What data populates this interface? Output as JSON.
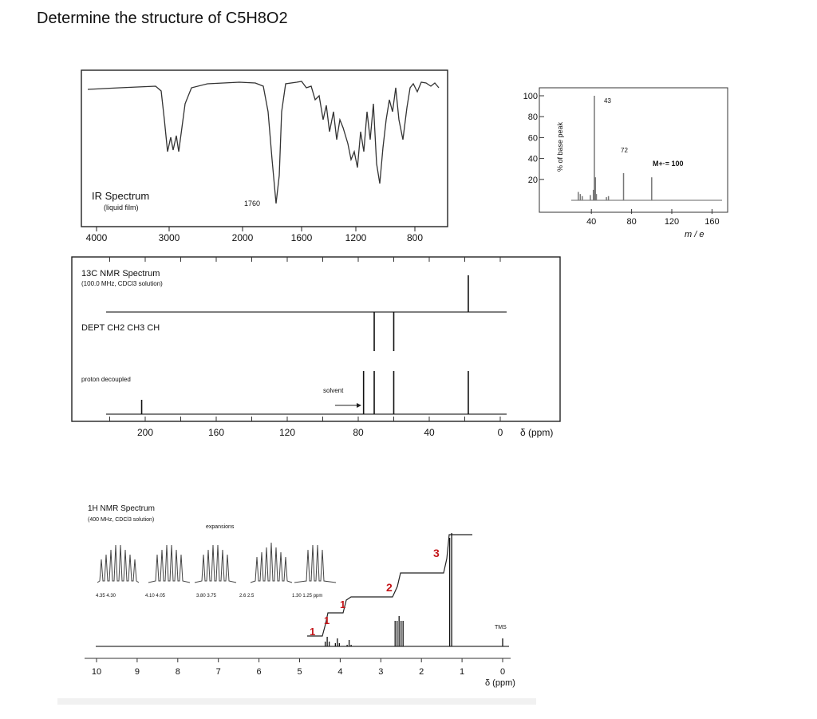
{
  "question": "Determine the structure of C5H8O2",
  "ir": {
    "title": "IR Spectrum",
    "subtitle": "(liquid film)",
    "peak_label": "1760",
    "x_ticks": [
      "4000",
      "3000",
      "2000",
      "1600",
      "1200",
      "800"
    ]
  },
  "ms": {
    "ylabel": "% of base peak",
    "xlabel": "m / e",
    "y_ticks": [
      "100",
      "80",
      "60",
      "40",
      "20"
    ],
    "x_ticks": [
      "40",
      "80",
      "120",
      "160"
    ],
    "peak_labels": [
      "43",
      "72"
    ],
    "molecular_ion": "M+·= 100"
  },
  "c13": {
    "title": "13C NMR Spectrum",
    "subtitle": "(100.0 MHz, CDCl3 solution)",
    "dept": "DEPT  CH2  CH3  CH",
    "decoupled": "proton decoupled",
    "solvent": "solvent",
    "x_ticks": [
      "200",
      "160",
      "120",
      "80",
      "40",
      "0"
    ],
    "xlabel": "δ (ppm)"
  },
  "h1": {
    "title": "1H NMR Spectrum",
    "subtitle": "(400 MHz, CDCl3 solution)",
    "expansions": "expansions",
    "exp_ticks": [
      "4.35  4.30",
      "4.10  4.05",
      "3.80  3.75",
      "2.6  2.5",
      "1.30  1.25  ppm"
    ],
    "integrals": [
      "1",
      "1",
      "1",
      "2",
      "3"
    ],
    "tms": "TMS",
    "x_ticks": [
      "10",
      "9",
      "8",
      "7",
      "6",
      "5",
      "4",
      "3",
      "2",
      "1",
      "0"
    ],
    "xlabel": "δ (ppm)"
  },
  "chart_data": [
    {
      "type": "line",
      "title": "IR Spectrum",
      "xlabel": "",
      "ylabel": "",
      "x_ticks": [
        4000,
        3000,
        2000,
        1600,
        1200,
        800
      ],
      "annotations": [
        "1760"
      ]
    },
    {
      "type": "bar",
      "ylabel": "% of base peak",
      "xlabel": "m / e",
      "x": [
        27,
        29,
        31,
        39,
        42,
        43,
        44,
        45,
        55,
        57,
        72,
        100
      ],
      "y": [
        8,
        6,
        4,
        5,
        10,
        100,
        22,
        6,
        3,
        4,
        26,
        22
      ],
      "ylim": [
        0,
        100
      ],
      "xlim": [
        20,
        170
      ],
      "annotations": [
        "43",
        "72",
        "M+·= 100"
      ]
    },
    {
      "type": "bar",
      "title": "13C NMR Spectrum",
      "xlabel": "δ (ppm)",
      "x": [
        202,
        77,
        71,
        60,
        18
      ],
      "y": [
        30,
        100,
        100,
        100,
        100
      ],
      "xlim": [
        0,
        220
      ],
      "annotations": [
        "solvent",
        "DEPT  CH2  CH3  CH",
        "proton decoupled"
      ]
    },
    {
      "type": "line",
      "title": "1H NMR Spectrum",
      "xlabel": "δ (ppm)",
      "x": [
        4.32,
        4.07,
        3.78,
        2.55,
        1.28,
        0
      ],
      "integration": [
        1,
        1,
        1,
        2,
        3
      ],
      "xlim": [
        0,
        10
      ]
    }
  ]
}
